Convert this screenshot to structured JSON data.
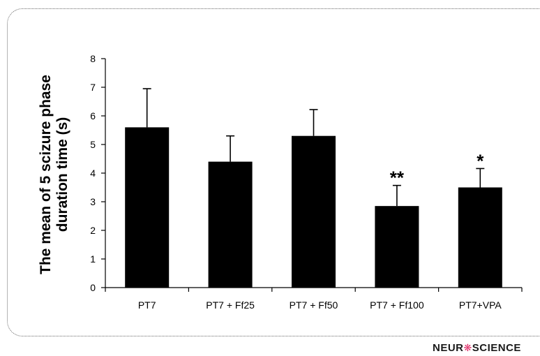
{
  "chart_data": {
    "type": "bar",
    "ylabel": "The mean of 5 scizure phase duration time (s)",
    "ylabel_lines": [
      "The mean of 5 scizure phase",
      "duration time (s)"
    ],
    "xlabel": "",
    "categories": [
      "PT7",
      "PT7 + Ff25",
      "PT7 + Ff50",
      "PT7 + Ff100",
      "PT7+VPA"
    ],
    "values": [
      5.6,
      4.4,
      5.3,
      2.85,
      3.5
    ],
    "errors": [
      1.35,
      0.9,
      0.92,
      0.72,
      0.66
    ],
    "annotations": [
      "",
      "",
      "",
      "**",
      "*"
    ],
    "ylim": [
      0,
      8
    ],
    "yticks": [
      0,
      1,
      2,
      3,
      4,
      5,
      6,
      7,
      8
    ],
    "grid": false,
    "bar_color": "#000000"
  },
  "logo": {
    "text_left": "NEUR",
    "text_right": "SCIENCE",
    "mark_icon": "neuron-icon"
  }
}
